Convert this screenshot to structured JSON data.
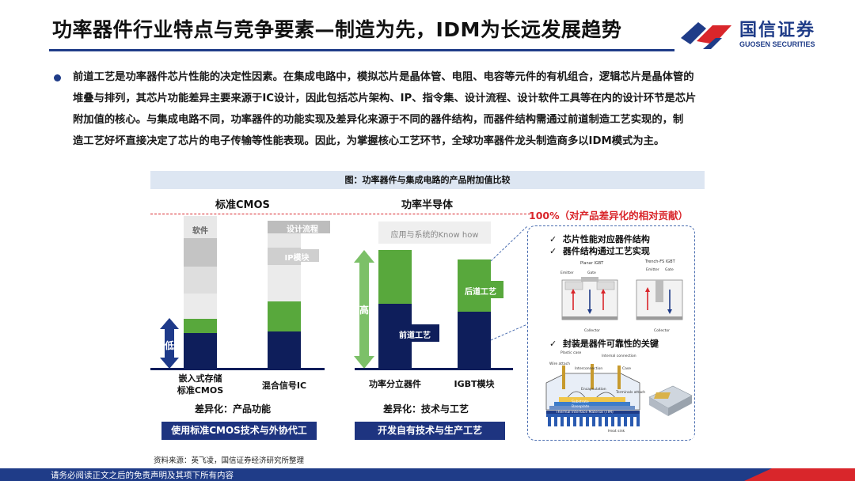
{
  "header": {
    "title": "功率器件行业特点与竞争要素—制造为先，IDM为长远发展趋势",
    "logo_cn": "国信证券",
    "logo_en": "GUOSEN SECURITIES"
  },
  "paragraph": {
    "lines": [
      "前道工艺是功率器件芯片性能的决定性因素。在集成电路中，模拟芯片是晶体管、电阻、电容等元件的有机组合，逻辑芯片是晶体管的",
      "堆叠与排列，其芯片功能差异主要来源于IC设计，因此包括芯片架构、IP、指令集、设计流程、设计软件工具等在内的设计环节是芯片",
      "附加值的核心。与集成电路不同，功率器件的功能实现及差异化来源于不同的器件结构，而器件结构需通过前道制造工艺实现的，制",
      "造工艺好坏直接决定了芯片的电子传输等性能表现。因此，为掌握核心工艺环节，全球功率器件龙头制造商多以IDM模式为主。"
    ]
  },
  "figure": {
    "caption": "图：功率器件与集成电路的产品附加值比较",
    "hundred_label": "100%（对产品差异化的相对贡献）",
    "groups": {
      "cmos": {
        "head": "标准CMOS",
        "diff": "差异化：产品功能",
        "box": "使用标准CMOS技术与外协代工",
        "bars": [
          {
            "label": "嵌入式存储\n标准CMOS"
          },
          {
            "label": "混合信号IC"
          }
        ],
        "seg_labels": {
          "software": "软件",
          "design_flow": "设计流程",
          "ip_module": "IP模块",
          "low": "低"
        }
      },
      "power": {
        "head": "功率半导体",
        "diff": "差异化：技术与工艺",
        "box": "开发自有技术与生产工艺",
        "bars": [
          {
            "label": "功率分立器件"
          },
          {
            "label": "IGBT模块"
          }
        ],
        "seg_labels": {
          "app_knowhow": "应用与系统的Know how",
          "back_end": "后道工艺",
          "front_end": "前道工艺",
          "high": "高"
        }
      }
    },
    "detail": {
      "check1": "芯片性能对应器件结构",
      "check2": "器件结构通过工艺实现",
      "check3": "封装是器件可靠性的关键",
      "igbt_left": "Planar IGBT",
      "igbt_right": "Trench-FS IGBT",
      "emitter": "Emitter",
      "gate": "Gate",
      "collector": "Collector",
      "package_tags": [
        "Plastic case",
        "Wire attach",
        "Interconnection",
        "Internal connection",
        "Case",
        "Encapsulation",
        "Terminals attach",
        "Substrate",
        "Baseplate",
        "Thermal Interface Material (TIM)",
        "Heat sink"
      ]
    },
    "source": "资料来源：英飞凌，国信证券经济研究所整理"
  },
  "footer": {
    "text": "请务必阅读正文之后的免责声明及其项下所有内容"
  },
  "colors": {
    "navy": "#0e1e5b",
    "green": "#58a83c",
    "grey_light": "#e6e6e6",
    "grey_mid": "#c8c8c8",
    "brand_blue": "#1f3c88",
    "brand_red": "#d9262b"
  }
}
